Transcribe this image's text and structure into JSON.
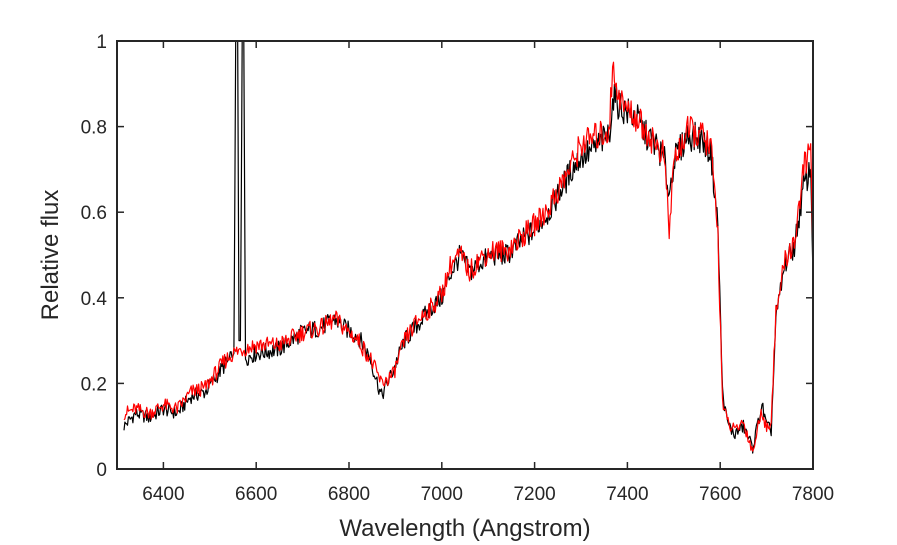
{
  "chart_data": {
    "type": "line",
    "title": "",
    "xlabel": "Wavelength (Angstrom)",
    "ylabel": "Relative flux",
    "xlim": [
      6300,
      7800
    ],
    "ylim": [
      0,
      1
    ],
    "xticks": [
      6400,
      6600,
      6800,
      7000,
      7200,
      7400,
      7600,
      7800
    ],
    "yticks": [
      0,
      0.2,
      0.4,
      0.6,
      0.8,
      1
    ],
    "ytick_labels": [
      "0",
      "0.2",
      "0.4",
      "0.6",
      "0.8",
      "1"
    ],
    "grid": false,
    "legend": "none",
    "series": [
      {
        "color": "#000000",
        "points": [
          [
            6315,
            0.1
          ],
          [
            6340,
            0.13
          ],
          [
            6370,
            0.12
          ],
          [
            6400,
            0.14
          ],
          [
            6430,
            0.13
          ],
          [
            6460,
            0.17
          ],
          [
            6490,
            0.18
          ],
          [
            6510,
            0.21
          ],
          [
            6530,
            0.24
          ],
          [
            6548,
            0.26
          ],
          [
            6552,
            0.27
          ],
          [
            6556,
            1.05
          ],
          [
            6560,
            1.05
          ],
          [
            6563,
            0.3
          ],
          [
            6566,
            0.3
          ],
          [
            6570,
            1.05
          ],
          [
            6573,
            1.05
          ],
          [
            6577,
            0.26
          ],
          [
            6600,
            0.27
          ],
          [
            6650,
            0.28
          ],
          [
            6700,
            0.32
          ],
          [
            6740,
            0.33
          ],
          [
            6770,
            0.35
          ],
          [
            6790,
            0.33
          ],
          [
            6820,
            0.31
          ],
          [
            6845,
            0.26
          ],
          [
            6870,
            0.17
          ],
          [
            6895,
            0.23
          ],
          [
            6920,
            0.3
          ],
          [
            6950,
            0.34
          ],
          [
            6980,
            0.38
          ],
          [
            7000,
            0.4
          ],
          [
            7020,
            0.46
          ],
          [
            7040,
            0.5
          ],
          [
            7060,
            0.46
          ],
          [
            7080,
            0.48
          ],
          [
            7110,
            0.5
          ],
          [
            7140,
            0.5
          ],
          [
            7170,
            0.53
          ],
          [
            7200,
            0.56
          ],
          [
            7230,
            0.6
          ],
          [
            7260,
            0.66
          ],
          [
            7280,
            0.7
          ],
          [
            7300,
            0.73
          ],
          [
            7320,
            0.74
          ],
          [
            7360,
            0.78
          ],
          [
            7370,
            0.87
          ],
          [
            7390,
            0.84
          ],
          [
            7420,
            0.82
          ],
          [
            7440,
            0.78
          ],
          [
            7460,
            0.76
          ],
          [
            7480,
            0.72
          ],
          [
            7490,
            0.64
          ],
          [
            7500,
            0.72
          ],
          [
            7530,
            0.78
          ],
          [
            7560,
            0.77
          ],
          [
            7580,
            0.74
          ],
          [
            7595,
            0.57
          ],
          [
            7605,
            0.18
          ],
          [
            7615,
            0.11
          ],
          [
            7630,
            0.08
          ],
          [
            7650,
            0.1
          ],
          [
            7670,
            0.05
          ],
          [
            7690,
            0.15
          ],
          [
            7700,
            0.1
          ],
          [
            7710,
            0.09
          ],
          [
            7720,
            0.35
          ],
          [
            7740,
            0.48
          ],
          [
            7760,
            0.52
          ],
          [
            7780,
            0.66
          ],
          [
            7795,
            0.7
          ],
          [
            7800,
            0.45
          ]
        ]
      },
      {
        "color": "#ff0000",
        "points": [
          [
            6315,
            0.13
          ],
          [
            6340,
            0.14
          ],
          [
            6370,
            0.13
          ],
          [
            6400,
            0.15
          ],
          [
            6430,
            0.14
          ],
          [
            6460,
            0.18
          ],
          [
            6490,
            0.19
          ],
          [
            6510,
            0.22
          ],
          [
            6530,
            0.25
          ],
          [
            6550,
            0.27
          ],
          [
            6570,
            0.28
          ],
          [
            6600,
            0.29
          ],
          [
            6650,
            0.29
          ],
          [
            6700,
            0.32
          ],
          [
            6740,
            0.33
          ],
          [
            6770,
            0.35
          ],
          [
            6790,
            0.33
          ],
          [
            6820,
            0.3
          ],
          [
            6845,
            0.26
          ],
          [
            6870,
            0.2
          ],
          [
            6895,
            0.22
          ],
          [
            6920,
            0.3
          ],
          [
            6950,
            0.35
          ],
          [
            6980,
            0.38
          ],
          [
            7000,
            0.41
          ],
          [
            7020,
            0.48
          ],
          [
            7040,
            0.5
          ],
          [
            7060,
            0.46
          ],
          [
            7080,
            0.49
          ],
          [
            7110,
            0.51
          ],
          [
            7140,
            0.51
          ],
          [
            7170,
            0.54
          ],
          [
            7200,
            0.57
          ],
          [
            7230,
            0.61
          ],
          [
            7260,
            0.67
          ],
          [
            7280,
            0.71
          ],
          [
            7300,
            0.76
          ],
          [
            7320,
            0.77
          ],
          [
            7360,
            0.79
          ],
          [
            7368,
            0.93
          ],
          [
            7390,
            0.85
          ],
          [
            7420,
            0.82
          ],
          [
            7440,
            0.79
          ],
          [
            7460,
            0.76
          ],
          [
            7480,
            0.73
          ],
          [
            7490,
            0.55
          ],
          [
            7500,
            0.72
          ],
          [
            7530,
            0.79
          ],
          [
            7560,
            0.78
          ],
          [
            7580,
            0.75
          ],
          [
            7595,
            0.55
          ],
          [
            7605,
            0.16
          ],
          [
            7615,
            0.11
          ],
          [
            7630,
            0.09
          ],
          [
            7650,
            0.11
          ],
          [
            7670,
            0.04
          ],
          [
            7690,
            0.14
          ],
          [
            7700,
            0.09
          ],
          [
            7710,
            0.12
          ],
          [
            7720,
            0.36
          ],
          [
            7740,
            0.49
          ],
          [
            7760,
            0.53
          ],
          [
            7780,
            0.7
          ],
          [
            7795,
            0.76
          ],
          [
            7800,
            0.5
          ]
        ]
      }
    ]
  }
}
